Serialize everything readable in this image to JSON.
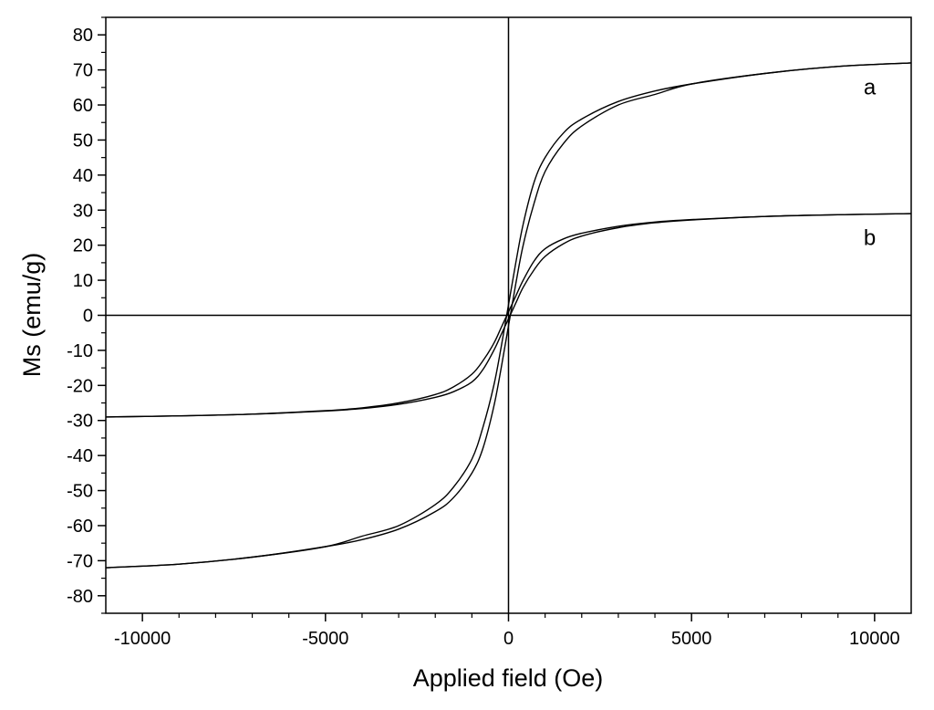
{
  "chart_data": {
    "type": "line",
    "title": "",
    "xlabel": "Applied field (Oe)",
    "ylabel": "Ms (emu/g)",
    "xlim": [
      -11000,
      11000
    ],
    "ylim": [
      -85,
      85
    ],
    "xticks": [
      -10000,
      -5000,
      0,
      5000,
      10000
    ],
    "xtick_labels": [
      "-10000",
      "-5000",
      "0",
      "5000",
      "10000"
    ],
    "yticks": [
      -80,
      -70,
      -60,
      -50,
      -40,
      -30,
      -20,
      -10,
      0,
      10,
      20,
      30,
      40,
      50,
      60,
      70,
      80
    ],
    "ytick_labels": [
      "-80",
      "-70",
      "-60",
      "-50",
      "-40",
      "-30",
      "-20",
      "-10",
      "0",
      "10",
      "20",
      "30",
      "40",
      "50",
      "60",
      "70",
      "80"
    ],
    "grid": false,
    "legend": "none",
    "zero_lines": true,
    "series": [
      {
        "name": "a",
        "label_at": {
          "x": 9700,
          "y": 63
        },
        "descending": [
          {
            "x": 11000,
            "y": 72
          },
          {
            "x": 9000,
            "y": 71
          },
          {
            "x": 7000,
            "y": 69
          },
          {
            "x": 5000,
            "y": 66
          },
          {
            "x": 4000,
            "y": 64
          },
          {
            "x": 3000,
            "y": 61
          },
          {
            "x": 2000,
            "y": 56
          },
          {
            "x": 1500,
            "y": 52
          },
          {
            "x": 1000,
            "y": 45
          },
          {
            "x": 700,
            "y": 38
          },
          {
            "x": 400,
            "y": 26
          },
          {
            "x": 200,
            "y": 15
          },
          {
            "x": 0,
            "y": 3
          },
          {
            "x": -200,
            "y": -9
          },
          {
            "x": -400,
            "y": -20
          },
          {
            "x": -700,
            "y": -32
          },
          {
            "x": -1000,
            "y": -41
          },
          {
            "x": -1500,
            "y": -49
          },
          {
            "x": -2000,
            "y": -54
          },
          {
            "x": -3000,
            "y": -60
          },
          {
            "x": -4000,
            "y": -63
          },
          {
            "x": -5000,
            "y": -66
          },
          {
            "x": -7000,
            "y": -69
          },
          {
            "x": -9000,
            "y": -71
          },
          {
            "x": -11000,
            "y": -72
          }
        ],
        "ascending": [
          {
            "x": -11000,
            "y": -72
          },
          {
            "x": -9000,
            "y": -71
          },
          {
            "x": -7000,
            "y": -69
          },
          {
            "x": -5000,
            "y": -66
          },
          {
            "x": -4000,
            "y": -64
          },
          {
            "x": -3000,
            "y": -61
          },
          {
            "x": -2000,
            "y": -56
          },
          {
            "x": -1500,
            "y": -52
          },
          {
            "x": -1000,
            "y": -45
          },
          {
            "x": -700,
            "y": -38
          },
          {
            "x": -400,
            "y": -26
          },
          {
            "x": -200,
            "y": -15
          },
          {
            "x": 0,
            "y": -3
          },
          {
            "x": 200,
            "y": 9
          },
          {
            "x": 400,
            "y": 20
          },
          {
            "x": 700,
            "y": 32
          },
          {
            "x": 1000,
            "y": 41
          },
          {
            "x": 1500,
            "y": 49
          },
          {
            "x": 2000,
            "y": 54
          },
          {
            "x": 3000,
            "y": 60
          },
          {
            "x": 4000,
            "y": 63
          },
          {
            "x": 5000,
            "y": 66
          },
          {
            "x": 7000,
            "y": 69
          },
          {
            "x": 9000,
            "y": 71
          },
          {
            "x": 11000,
            "y": 72
          }
        ]
      },
      {
        "name": "b",
        "label_at": {
          "x": 9700,
          "y": 20
        },
        "descending": [
          {
            "x": 11000,
            "y": 29
          },
          {
            "x": 9000,
            "y": 28.7
          },
          {
            "x": 7000,
            "y": 28.2
          },
          {
            "x": 5000,
            "y": 27.3
          },
          {
            "x": 4000,
            "y": 26.6
          },
          {
            "x": 3000,
            "y": 25.4
          },
          {
            "x": 2000,
            "y": 23.4
          },
          {
            "x": 1500,
            "y": 21.8
          },
          {
            "x": 1000,
            "y": 19
          },
          {
            "x": 700,
            "y": 15.5
          },
          {
            "x": 400,
            "y": 10
          },
          {
            "x": 200,
            "y": 5.5
          },
          {
            "x": 0,
            "y": 1
          },
          {
            "x": -200,
            "y": -3.5
          },
          {
            "x": -400,
            "y": -8
          },
          {
            "x": -700,
            "y": -13
          },
          {
            "x": -1000,
            "y": -16.8
          },
          {
            "x": -1500,
            "y": -20.4
          },
          {
            "x": -2000,
            "y": -22.6
          },
          {
            "x": -3000,
            "y": -25
          },
          {
            "x": -4000,
            "y": -26.4
          },
          {
            "x": -5000,
            "y": -27.2
          },
          {
            "x": -7000,
            "y": -28.2
          },
          {
            "x": -9000,
            "y": -28.7
          },
          {
            "x": -11000,
            "y": -29
          }
        ],
        "ascending": [
          {
            "x": -11000,
            "y": -29
          },
          {
            "x": -9000,
            "y": -28.7
          },
          {
            "x": -7000,
            "y": -28.2
          },
          {
            "x": -5000,
            "y": -27.3
          },
          {
            "x": -4000,
            "y": -26.6
          },
          {
            "x": -3000,
            "y": -25.4
          },
          {
            "x": -2000,
            "y": -23.4
          },
          {
            "x": -1500,
            "y": -21.8
          },
          {
            "x": -1000,
            "y": -19
          },
          {
            "x": -700,
            "y": -15.5
          },
          {
            "x": -400,
            "y": -10
          },
          {
            "x": -200,
            "y": -5.5
          },
          {
            "x": 0,
            "y": -1
          },
          {
            "x": 200,
            "y": 3.5
          },
          {
            "x": 400,
            "y": 8
          },
          {
            "x": 700,
            "y": 13
          },
          {
            "x": 1000,
            "y": 16.8
          },
          {
            "x": 1500,
            "y": 20.4
          },
          {
            "x": 2000,
            "y": 22.6
          },
          {
            "x": 3000,
            "y": 25
          },
          {
            "x": 4000,
            "y": 26.4
          },
          {
            "x": 5000,
            "y": 27.2
          },
          {
            "x": 7000,
            "y": 28.2
          },
          {
            "x": 9000,
            "y": 28.7
          },
          {
            "x": 11000,
            "y": 29
          }
        ]
      }
    ],
    "colors": {
      "line": "#000000",
      "axis": "#000000",
      "background": "#ffffff"
    }
  }
}
